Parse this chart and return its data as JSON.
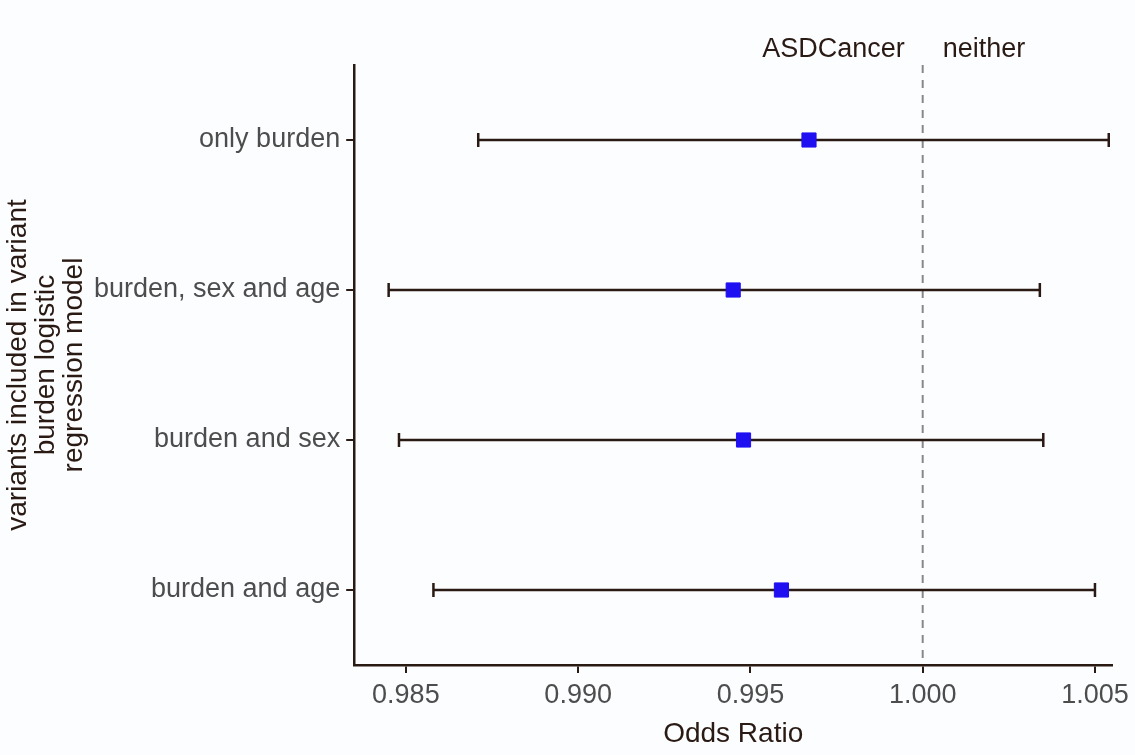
{
  "chart_data": {
    "type": "scatter",
    "orientation": "horizontal",
    "marker": "square",
    "grid": false,
    "legend": false,
    "categories": [
      "only burden",
      "burden, sex and age",
      "burden and sex",
      "burden and age"
    ],
    "values": [
      0.9967,
      0.9945,
      0.9948,
      0.9959
    ],
    "errors": [
      [
        0.9871,
        1.0054
      ],
      [
        0.9845,
        1.0034
      ],
      [
        0.9848,
        1.0035
      ],
      [
        0.9858,
        1.005
      ]
    ],
    "color": "#1f10f2",
    "xlim": [
      0.9835,
      1.0055
    ],
    "xticks": [
      0.985,
      {
        "value": 0.99,
        "label": "0.990"
      },
      0.995,
      {
        "value": 1.0,
        "label": "1.000"
      },
      1.005
    ],
    "xlabel": "Odds Ratio",
    "ylabel": "variants included in variant\nburden logistic\nregression model",
    "ref_lines": [
      {
        "axis": "x",
        "value": 1.0,
        "color": "#888888",
        "line_style": "dashed"
      }
    ],
    "annotations": [
      "ASDCancer",
      "neither"
    ]
  }
}
